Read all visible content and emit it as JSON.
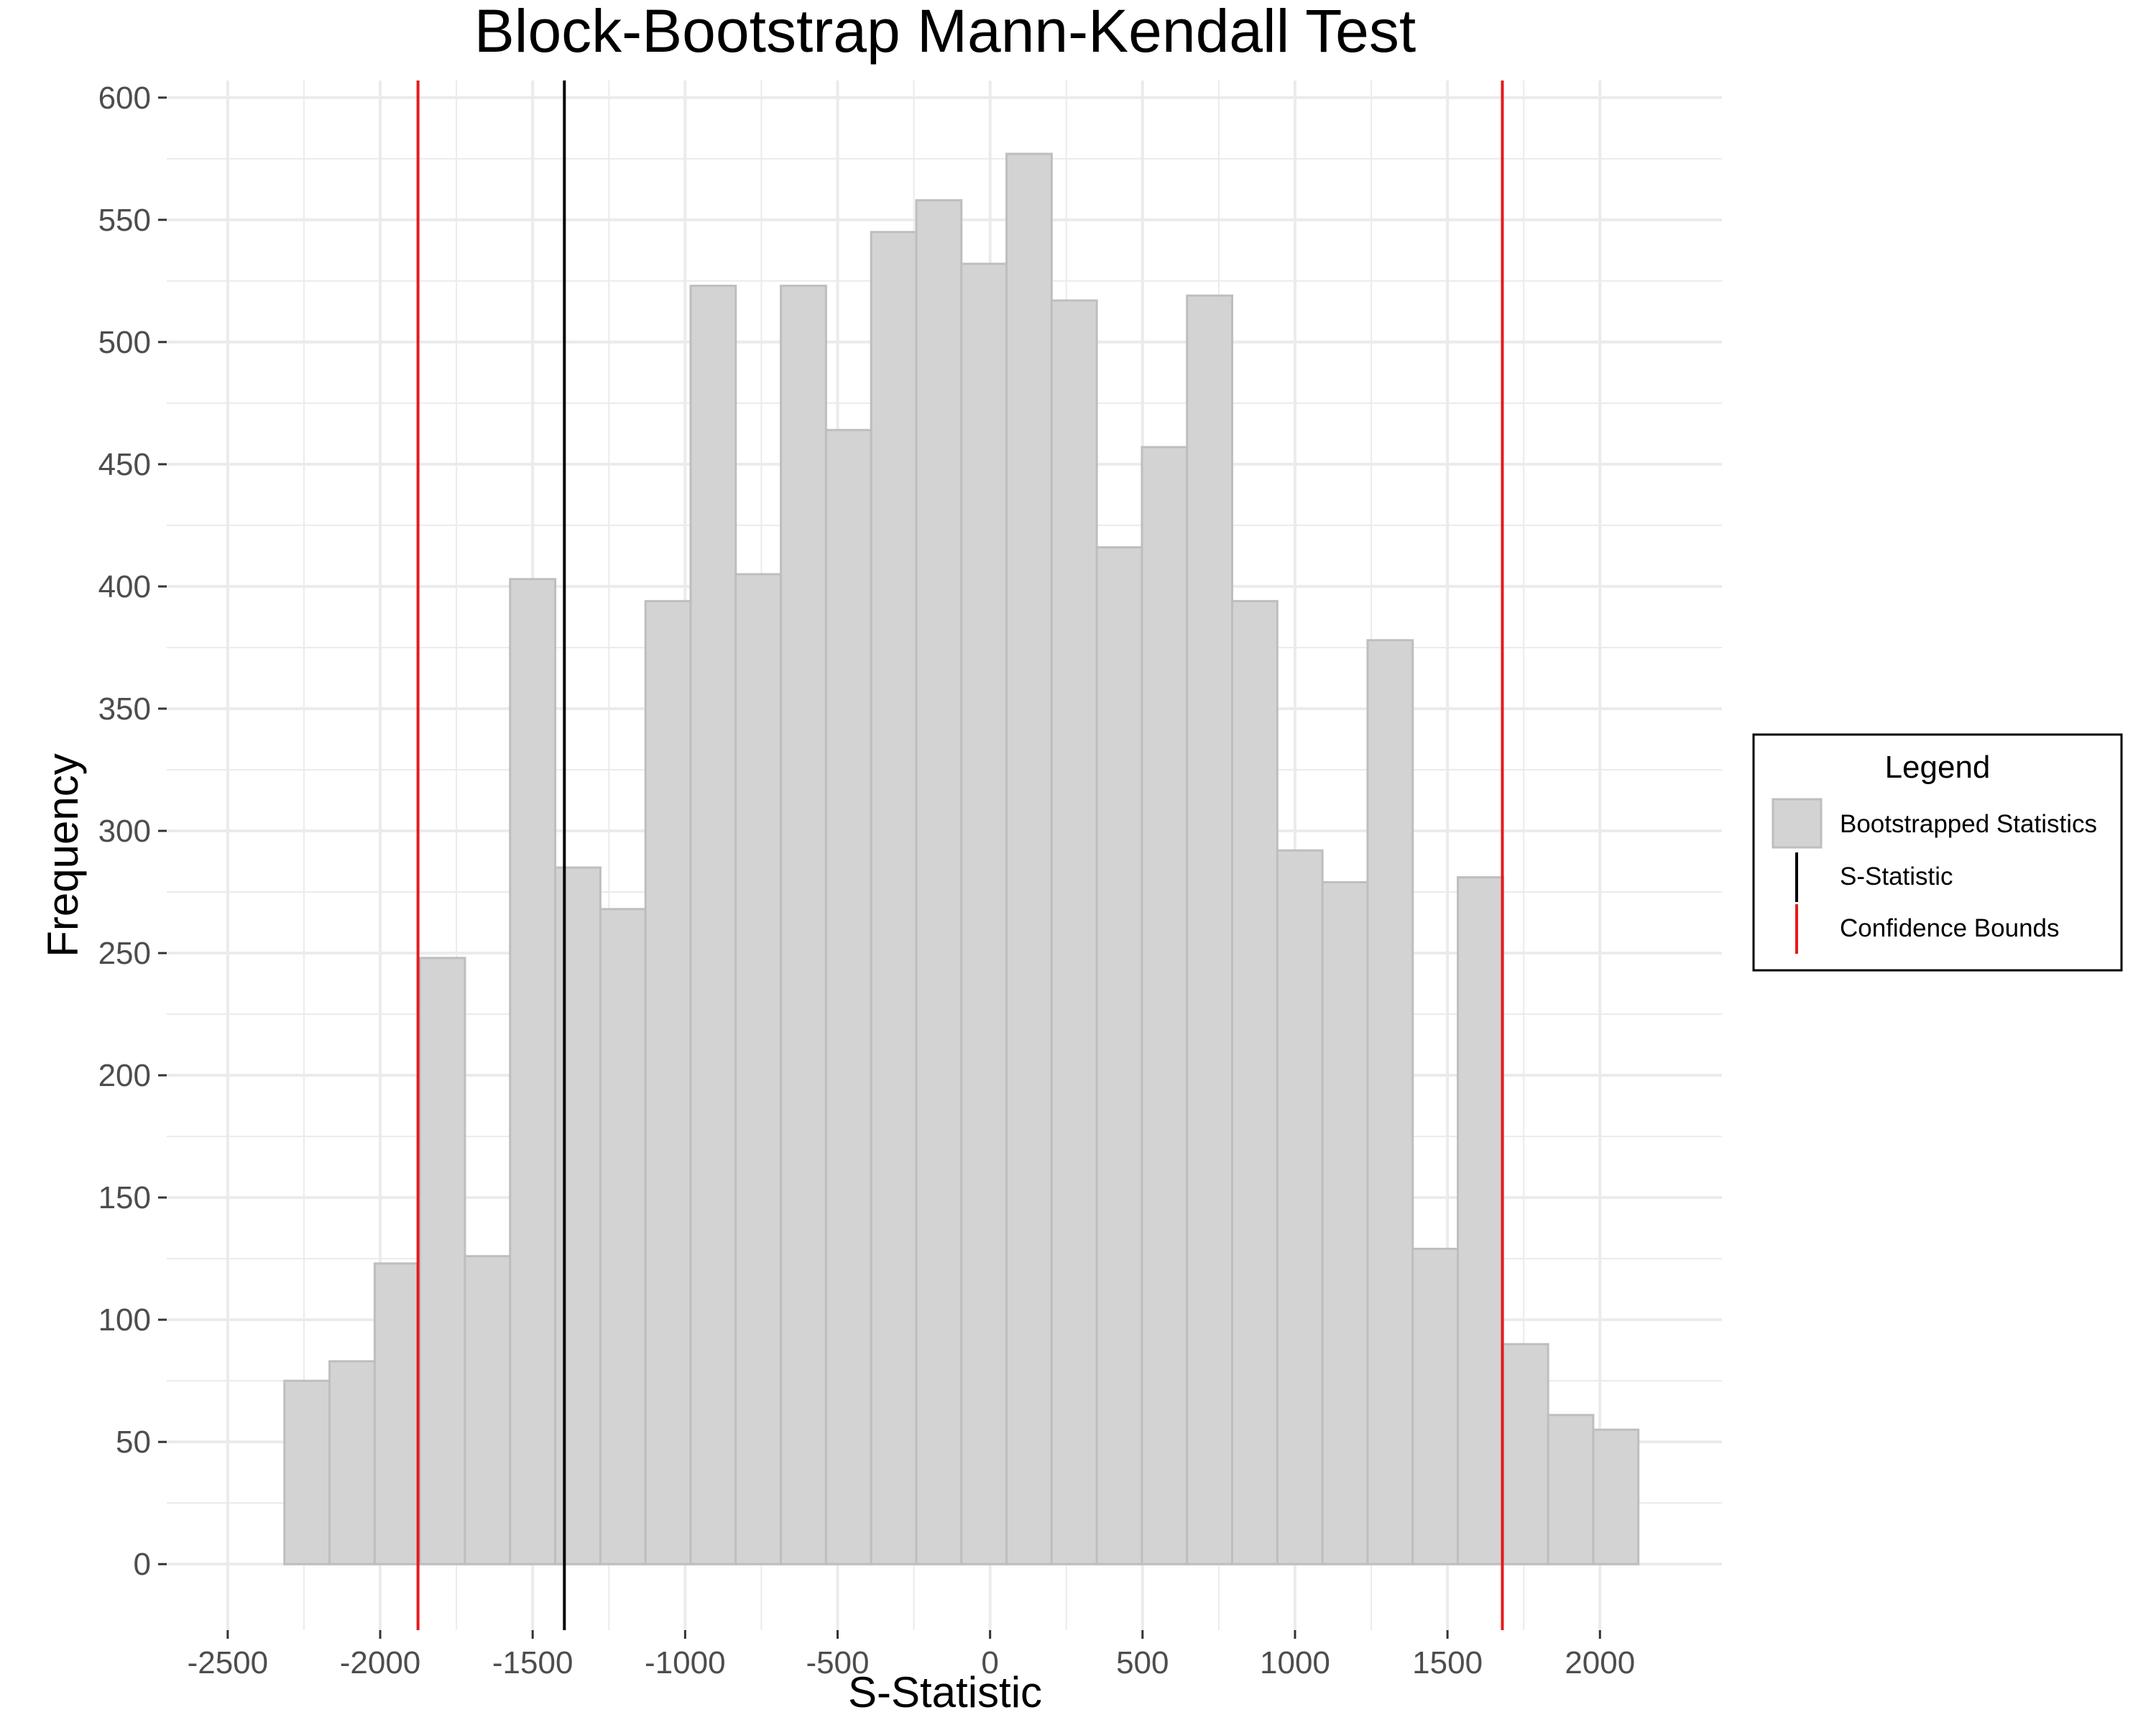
{
  "chart_data": {
    "type": "bar",
    "title": "Block-Bootstrap Mann-Kendall Test",
    "xlabel": "S-Statistic",
    "ylabel": "Frequency",
    "xlim": [
      -2700,
      2400
    ],
    "ylim": [
      -27,
      607
    ],
    "x_ticks": [
      -2500,
      -2000,
      -1500,
      -1000,
      -500,
      0,
      500,
      1000,
      1500,
      2000
    ],
    "y_ticks": [
      0,
      50,
      100,
      150,
      200,
      250,
      300,
      350,
      400,
      450,
      500,
      550,
      600
    ],
    "bin_width": 148,
    "bins": [
      {
        "x": -2240,
        "count": 75
      },
      {
        "x": -2092,
        "count": 83
      },
      {
        "x": -1944,
        "count": 123
      },
      {
        "x": -1796,
        "count": 248
      },
      {
        "x": -1648,
        "count": 126
      },
      {
        "x": -1500,
        "count": 403
      },
      {
        "x": -1352,
        "count": 285
      },
      {
        "x": -1204,
        "count": 268
      },
      {
        "x": -1056,
        "count": 394
      },
      {
        "x": -908,
        "count": 523
      },
      {
        "x": -760,
        "count": 405
      },
      {
        "x": -612,
        "count": 523
      },
      {
        "x": -464,
        "count": 464
      },
      {
        "x": -316,
        "count": 545
      },
      {
        "x": -168,
        "count": 558
      },
      {
        "x": -20,
        "count": 532
      },
      {
        "x": 128,
        "count": 577
      },
      {
        "x": 276,
        "count": 517
      },
      {
        "x": 424,
        "count": 416
      },
      {
        "x": 572,
        "count": 457
      },
      {
        "x": 720,
        "count": 519
      },
      {
        "x": 868,
        "count": 394
      },
      {
        "x": 1016,
        "count": 292
      },
      {
        "x": 1164,
        "count": 279
      },
      {
        "x": 1312,
        "count": 378
      },
      {
        "x": 1460,
        "count": 129
      },
      {
        "x": 1608,
        "count": 281
      },
      {
        "x": 1756,
        "count": 90
      },
      {
        "x": 1904,
        "count": 61
      },
      {
        "x": 2052,
        "count": 55
      }
    ],
    "s_statistic": -1396,
    "confidence_bounds": [
      -1876,
      1680
    ],
    "grid": true,
    "legend": {
      "title": "Legend",
      "placement": "right",
      "items": [
        "Bootstrapped Statistics",
        "S-Statistic",
        "Confidence Bounds"
      ]
    },
    "colors": {
      "bar_fill": "#d3d3d3",
      "bar_stroke": "#bebebe",
      "s_statistic": "#000000",
      "confidence_bounds": "#e41a1c",
      "grid": "#ebebeb"
    }
  }
}
